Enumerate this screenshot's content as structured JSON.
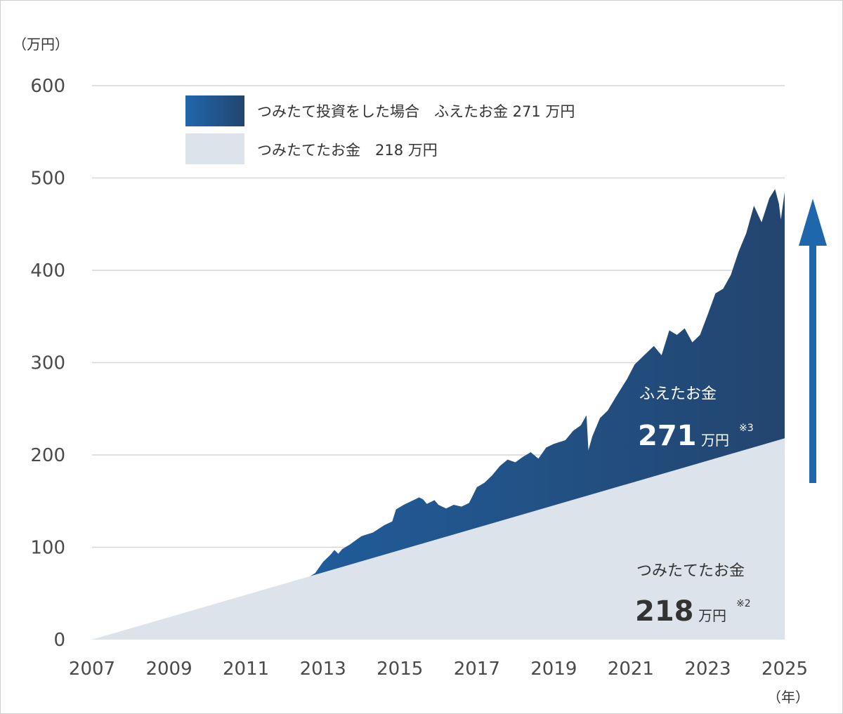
{
  "chart_data": {
    "type": "area",
    "y_unit_label": "（万円）",
    "x_unit_label": "（年）",
    "ylim": [
      0,
      600
    ],
    "y_ticks": [
      0,
      100,
      200,
      300,
      400,
      500,
      600
    ],
    "xlim": [
      2007,
      2025
    ],
    "x_ticks": [
      "2007",
      "2009",
      "2011",
      "2013",
      "2015",
      "2017",
      "2019",
      "2021",
      "2023",
      "2025"
    ],
    "grid": true,
    "legend_position": "top",
    "series": [
      {
        "name": "つみたて投資をした場合　ふえたお金 271 万円",
        "key": "investment",
        "color_start": "#1f67ad",
        "color_end": "#23456f",
        "points": [
          [
            2007.0,
            0
          ],
          [
            2007.5,
            5
          ],
          [
            2008.0,
            11
          ],
          [
            2008.5,
            17
          ],
          [
            2009.0,
            23
          ],
          [
            2009.5,
            29
          ],
          [
            2010.0,
            35
          ],
          [
            2010.5,
            41
          ],
          [
            2011.0,
            47
          ],
          [
            2011.5,
            53
          ],
          [
            2012.0,
            58
          ],
          [
            2012.5,
            64
          ],
          [
            2012.8,
            72
          ],
          [
            2013.0,
            84
          ],
          [
            2013.2,
            92
          ],
          [
            2013.3,
            97
          ],
          [
            2013.4,
            93
          ],
          [
            2013.5,
            98
          ],
          [
            2013.7,
            103
          ],
          [
            2014.0,
            112
          ],
          [
            2014.3,
            116
          ],
          [
            2014.6,
            124
          ],
          [
            2014.8,
            128
          ],
          [
            2014.9,
            141
          ],
          [
            2015.1,
            146
          ],
          [
            2015.3,
            150
          ],
          [
            2015.5,
            154
          ],
          [
            2015.6,
            152
          ],
          [
            2015.7,
            147
          ],
          [
            2015.9,
            151
          ],
          [
            2016.0,
            146
          ],
          [
            2016.2,
            142
          ],
          [
            2016.4,
            146
          ],
          [
            2016.6,
            144
          ],
          [
            2016.8,
            148
          ],
          [
            2017.0,
            165
          ],
          [
            2017.2,
            170
          ],
          [
            2017.4,
            178
          ],
          [
            2017.6,
            188
          ],
          [
            2017.8,
            195
          ],
          [
            2018.0,
            192
          ],
          [
            2018.2,
            198
          ],
          [
            2018.4,
            203
          ],
          [
            2018.6,
            196
          ],
          [
            2018.8,
            208
          ],
          [
            2019.0,
            212
          ],
          [
            2019.3,
            216
          ],
          [
            2019.5,
            226
          ],
          [
            2019.7,
            232
          ],
          [
            2019.85,
            243
          ],
          [
            2019.9,
            205
          ],
          [
            2020.0,
            220
          ],
          [
            2020.2,
            240
          ],
          [
            2020.4,
            248
          ],
          [
            2020.6,
            262
          ],
          [
            2020.9,
            282
          ],
          [
            2021.1,
            298
          ],
          [
            2021.4,
            310
          ],
          [
            2021.6,
            318
          ],
          [
            2021.8,
            308
          ],
          [
            2022.0,
            335
          ],
          [
            2022.2,
            330
          ],
          [
            2022.4,
            337
          ],
          [
            2022.6,
            322
          ],
          [
            2022.8,
            330
          ],
          [
            2023.0,
            352
          ],
          [
            2023.2,
            375
          ],
          [
            2023.4,
            380
          ],
          [
            2023.6,
            395
          ],
          [
            2023.8,
            420
          ],
          [
            2024.0,
            440
          ],
          [
            2024.2,
            470
          ],
          [
            2024.4,
            452
          ],
          [
            2024.6,
            478
          ],
          [
            2024.75,
            488
          ],
          [
            2024.85,
            472
          ],
          [
            2024.9,
            455
          ],
          [
            2025.0,
            485
          ]
        ]
      },
      {
        "name": "つみたてたお金　218 万円",
        "key": "contributions",
        "color": "#dce3ea",
        "points": [
          [
            2007.0,
            0
          ],
          [
            2025.0,
            218
          ]
        ]
      }
    ],
    "annotations": {
      "increase": {
        "title": "ふえたお金",
        "value": "271",
        "unit": "万円",
        "note": "※3"
      },
      "contributed": {
        "title": "つみたてたお金",
        "value": "218",
        "unit": "万円",
        "note": "※2"
      }
    },
    "arrow_color": "#1f67ad"
  }
}
